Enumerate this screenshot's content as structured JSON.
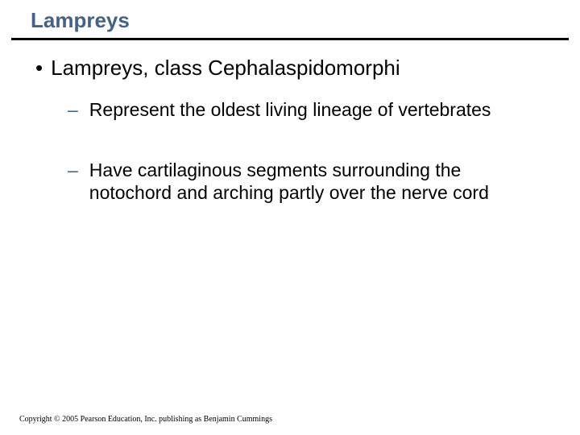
{
  "slide": {
    "title": "Lampreys",
    "title_color": "#426288",
    "title_fontsize": 26,
    "rule_color": "#000000",
    "bullets": {
      "level1": {
        "marker": "•",
        "text": "Lampreys, class Cephalaspidomorphi",
        "fontsize": 26,
        "color": "#000000"
      },
      "level2_items": [
        {
          "marker": "–",
          "marker_color": "#426288",
          "text": "Represent the oldest living lineage of vertebrates",
          "fontsize": 23,
          "color": "#000000"
        },
        {
          "marker": "–",
          "marker_color": "#426288",
          "text": "Have cartilaginous segments surrounding the notochord and arching partly over the nerve cord",
          "fontsize": 23,
          "color": "#000000"
        }
      ]
    },
    "copyright": "Copyright © 2005 Pearson Education, Inc. publishing as Benjamin Cummings",
    "background_color": "#ffffff"
  }
}
